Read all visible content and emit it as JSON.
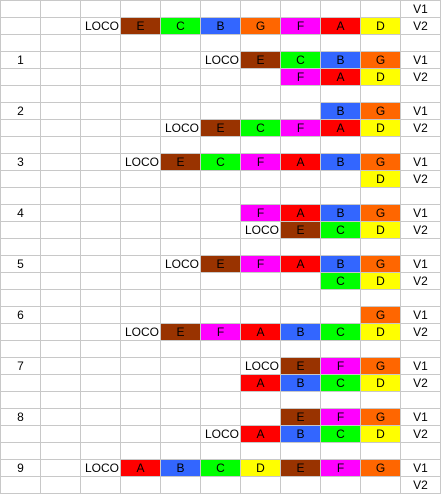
{
  "colors": {
    "E": "#993300",
    "C": "#00ff00",
    "B": "#3366ff",
    "G": "#ff6600",
    "F": "#ff00ff",
    "A": "#ff0000",
    "D": "#ffff00"
  },
  "rows": [
    [
      "",
      "",
      "",
      "",
      "",
      "",
      "",
      "",
      "",
      "",
      "V1"
    ],
    [
      "",
      "",
      "LOCO",
      "E",
      "C",
      "B",
      "G",
      "F",
      "A",
      "D",
      "V2"
    ],
    [
      "",
      "",
      "",
      "",
      "",
      "",
      "",
      "",
      "",
      "",
      ""
    ],
    [
      "1",
      "",
      "",
      "",
      "",
      "LOCO",
      "E",
      "C",
      "B",
      "G",
      "V1"
    ],
    [
      "",
      "",
      "",
      "",
      "",
      "",
      "",
      "F",
      "A",
      "D",
      "V2"
    ],
    [
      "",
      "",
      "",
      "",
      "",
      "",
      "",
      "",
      "",
      "",
      ""
    ],
    [
      "2",
      "",
      "",
      "",
      "",
      "",
      "",
      "",
      "B",
      "G",
      "V1"
    ],
    [
      "",
      "",
      "",
      "",
      "LOCO",
      "E",
      "C",
      "F",
      "A",
      "D",
      "V2"
    ],
    [
      "",
      "",
      "",
      "",
      "",
      "",
      "",
      "",
      "",
      "",
      ""
    ],
    [
      "3",
      "",
      "",
      "LOCO",
      "E",
      "C",
      "F",
      "A",
      "B",
      "G",
      "V1"
    ],
    [
      "",
      "",
      "",
      "",
      "",
      "",
      "",
      "",
      "",
      "D",
      "V2"
    ],
    [
      "",
      "",
      "",
      "",
      "",
      "",
      "",
      "",
      "",
      "",
      ""
    ],
    [
      "4",
      "",
      "",
      "",
      "",
      "",
      "F",
      "A",
      "B",
      "G",
      "V1"
    ],
    [
      "",
      "",
      "",
      "",
      "",
      "",
      "LOCO",
      "E",
      "C",
      "D",
      "V2"
    ],
    [
      "",
      "",
      "",
      "",
      "",
      "",
      "",
      "",
      "",
      "",
      ""
    ],
    [
      "5",
      "",
      "",
      "",
      "LOCO",
      "E",
      "F",
      "A",
      "B",
      "G",
      "V1"
    ],
    [
      "",
      "",
      "",
      "",
      "",
      "",
      "",
      "",
      "C",
      "D",
      "V2"
    ],
    [
      "",
      "",
      "",
      "",
      "",
      "",
      "",
      "",
      "",
      "",
      ""
    ],
    [
      "6",
      "",
      "",
      "",
      "",
      "",
      "",
      "",
      "",
      "G",
      "V1"
    ],
    [
      "",
      "",
      "",
      "LOCO",
      "E",
      "F",
      "A",
      "B",
      "C",
      "D",
      "V2"
    ],
    [
      "",
      "",
      "",
      "",
      "",
      "",
      "",
      "",
      "",
      "",
      ""
    ],
    [
      "7",
      "",
      "",
      "",
      "",
      "",
      "LOCO",
      "E",
      "F",
      "G",
      "V1"
    ],
    [
      "",
      "",
      "",
      "",
      "",
      "",
      "A",
      "B",
      "C",
      "D",
      "V2"
    ],
    [
      "",
      "",
      "",
      "",
      "",
      "",
      "",
      "",
      "",
      "",
      ""
    ],
    [
      "8",
      "",
      "",
      "",
      "",
      "",
      "",
      "E",
      "F",
      "G",
      "V1"
    ],
    [
      "",
      "",
      "",
      "",
      "",
      "LOCO",
      "A",
      "B",
      "C",
      "D",
      "V2"
    ],
    [
      "",
      "",
      "",
      "",
      "",
      "",
      "",
      "",
      "",
      "",
      ""
    ],
    [
      "9",
      "",
      "LOCO",
      "A",
      "B",
      "C",
      "D",
      "E",
      "F",
      "G",
      "V1"
    ],
    [
      "",
      "",
      "",
      "",
      "",
      "",
      "",
      "",
      "",
      "",
      "V2"
    ]
  ]
}
